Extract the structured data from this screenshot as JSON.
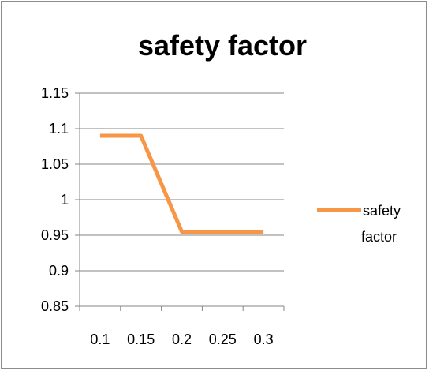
{
  "chart_data": {
    "type": "line",
    "title": "safety factor",
    "xlabel": "",
    "ylabel": "",
    "categories": [
      "0.1",
      "0.15",
      "0.2",
      "0.25",
      "0.3"
    ],
    "series": [
      {
        "name": "safety factor",
        "values": [
          1.09,
          1.09,
          0.955,
          0.955,
          0.955
        ],
        "color": "#F79646"
      }
    ],
    "y_ticks": [
      "0.85",
      "0.9",
      "0.95",
      "1",
      "1.05",
      "1.1",
      "1.15"
    ],
    "ylim": [
      0.85,
      1.15
    ],
    "grid": true,
    "legend": {
      "position": "right",
      "label_lines": [
        "safety",
        "factor"
      ]
    }
  }
}
